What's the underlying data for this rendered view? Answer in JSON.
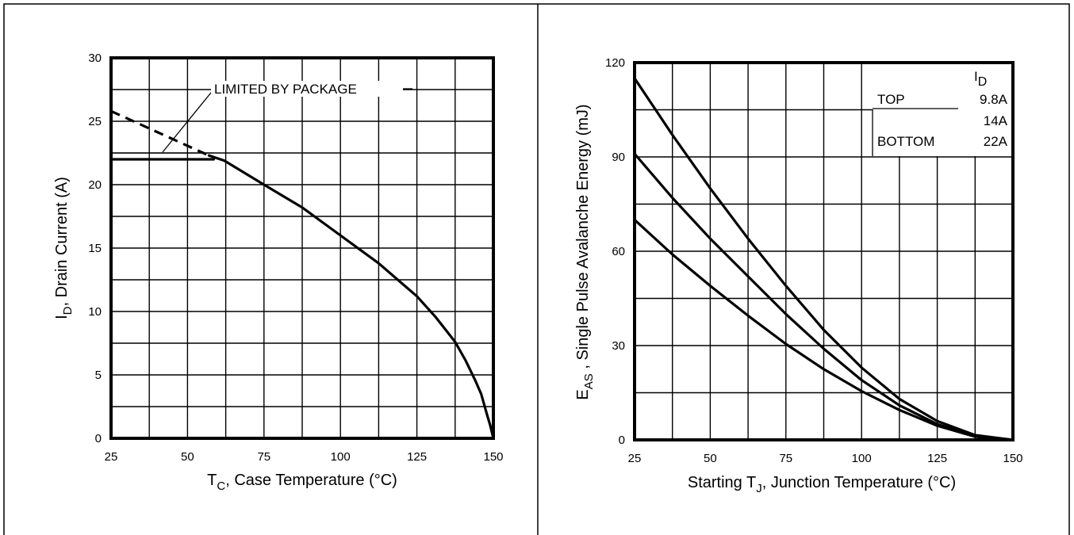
{
  "chart_data": [
    {
      "type": "line",
      "xlabel_main": "T",
      "xlabel_sub": "C",
      "xlabel_rest": ", Case Temperature   (°C)",
      "ylabel_main": "I",
      "ylabel_sub": "D",
      "ylabel_rest": ", Drain Current (A)",
      "xlim": [
        25,
        150
      ],
      "ylim": [
        0,
        30
      ],
      "xticks": [
        "25",
        "50",
        "75",
        "100",
        "125",
        "150"
      ],
      "yticks": [
        "0",
        "5",
        "10",
        "15",
        "20",
        "25",
        "30"
      ],
      "annotation": "LIMITED BY PACKAGE",
      "grid": true,
      "series": [
        {
          "x": [
            57,
            62,
            75,
            87.5,
            100,
            112.5,
            125,
            131,
            137.5,
            141,
            144,
            146,
            148,
            149,
            150
          ],
          "y": [
            22.3,
            21.9,
            20,
            18.2,
            16,
            13.8,
            11.2,
            9.6,
            7.6,
            6.1,
            4.6,
            3.5,
            1.8,
            1.0,
            0
          ]
        },
        {
          "style": "dashed",
          "x": [
            25,
            57
          ],
          "y": [
            25.8,
            22.3
          ]
        },
        {
          "style": "limit",
          "x": [
            25,
            57
          ],
          "y": [
            22,
            22
          ]
        }
      ]
    },
    {
      "type": "line",
      "xlabel_pre": "Starting T",
      "xlabel_sub": "J",
      "xlabel_rest": ", Junction Temperature  (°C)",
      "ylabel_main": "E",
      "ylabel_sub": "AS",
      "ylabel_rest": " , Single Pulse Avalanche Energy (mJ)",
      "xlim": [
        25,
        150
      ],
      "ylim": [
        0,
        120
      ],
      "xticks": [
        "25",
        "50",
        "75",
        "100",
        "125",
        "150"
      ],
      "yticks": [
        "0",
        "30",
        "60",
        "90",
        "120"
      ],
      "grid": true,
      "legend": {
        "header_main": "I",
        "header_sub": "D",
        "rows": [
          {
            "label": "TOP",
            "value": "9.8A"
          },
          {
            "label": "",
            "value": "14A"
          },
          {
            "label": "BOTTOM",
            "value": "22A"
          }
        ]
      },
      "series": [
        {
          "x": [
            25,
            37.5,
            50,
            62.5,
            75,
            87.5,
            100,
            112.5,
            125,
            137.5,
            150
          ],
          "y": [
            115,
            97,
            80,
            64,
            49,
            35,
            23,
            13,
            6,
            1.5,
            0
          ]
        },
        {
          "x": [
            25,
            37.5,
            50,
            62.5,
            75,
            87.5,
            100,
            112.5,
            125,
            137.5,
            150
          ],
          "y": [
            91,
            77,
            64,
            52,
            40,
            29,
            19,
            11,
            5,
            1.2,
            0
          ]
        },
        {
          "x": [
            25,
            37.5,
            50,
            62.5,
            75,
            87.5,
            100,
            112.5,
            125,
            137.5,
            150
          ],
          "y": [
            70,
            59,
            49,
            39.5,
            30.5,
            22.5,
            15.5,
            9.5,
            4.5,
            1.0,
            0
          ]
        }
      ]
    }
  ]
}
